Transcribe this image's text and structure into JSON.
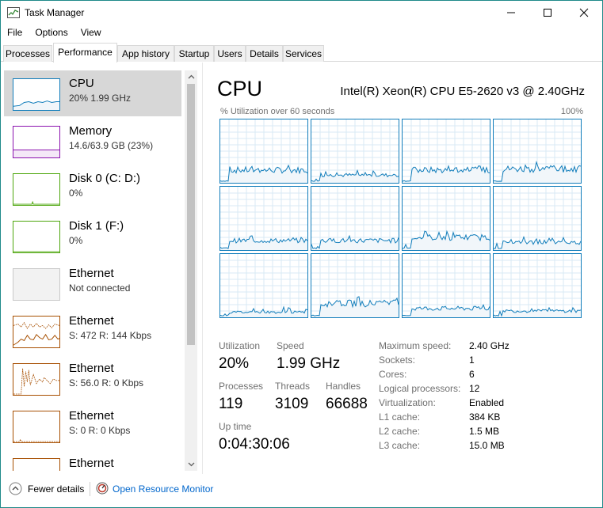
{
  "window": {
    "title": "Task Manager"
  },
  "menu": [
    "File",
    "Options",
    "View"
  ],
  "tabs": [
    "Processes",
    "Performance",
    "App history",
    "Startup",
    "Users",
    "Details",
    "Services"
  ],
  "sidebar": [
    {
      "name": "CPU",
      "detail": "20% 1.99 GHz",
      "color": "#117dbb"
    },
    {
      "name": "Memory",
      "detail": "14.6/63.9 GB (23%)",
      "color": "#8b12ae"
    },
    {
      "name": "Disk 0 (C: D:)",
      "detail": "0%",
      "color": "#4da60c"
    },
    {
      "name": "Disk 1 (F:)",
      "detail": "0%",
      "color": "#4da60c"
    },
    {
      "name": "Ethernet",
      "detail": "Not connected",
      "color": "#c8c8c8"
    },
    {
      "name": "Ethernet",
      "detail": "S: 472  R: 144 Kbps",
      "color": "#a74f01"
    },
    {
      "name": "Ethernet",
      "detail": "S: 56.0  R: 0 Kbps",
      "color": "#a74f01"
    },
    {
      "name": "Ethernet",
      "detail": "S: 0  R: 0 Kbps",
      "color": "#a74f01"
    },
    {
      "name": "Ethernet",
      "detail": "",
      "color": "#a74f01"
    }
  ],
  "main": {
    "title": "CPU",
    "model": "Intel(R) Xeon(R) CPU E5-2620 v3 @ 2.40GHz",
    "graph_label": "% Utilization over 60 seconds",
    "graph_max": "100%",
    "stats": {
      "utilization_label": "Utilization",
      "utilization": "20%",
      "speed_label": "Speed",
      "speed": "1.99 GHz",
      "processes_label": "Processes",
      "processes": "119",
      "threads_label": "Threads",
      "threads": "3109",
      "handles_label": "Handles",
      "handles": "66688",
      "uptime_label": "Up time",
      "uptime": "0:04:30:06"
    },
    "specs": [
      {
        "label": "Maximum speed:",
        "value": "2.40 GHz"
      },
      {
        "label": "Sockets:",
        "value": "1"
      },
      {
        "label": "Cores:",
        "value": "6"
      },
      {
        "label": "Logical processors:",
        "value": "12"
      },
      {
        "label": "Virtualization:",
        "value": "Enabled"
      },
      {
        "label": "L1 cache:",
        "value": "384 KB"
      },
      {
        "label": "L2 cache:",
        "value": "1.5 MB"
      },
      {
        "label": "L3 cache:",
        "value": "15.0 MB"
      }
    ]
  },
  "footer": {
    "fewer_details": "Fewer details",
    "resource_monitor": "Open Resource Monitor"
  },
  "colors": {
    "cpu": "#117dbb",
    "cpu_fill": "#f1f6fa",
    "grid": "#d9eaf4",
    "memory": "#8b12ae",
    "disk": "#4da60c",
    "ethernet": "#a74f01",
    "link": "#0066cc"
  }
}
